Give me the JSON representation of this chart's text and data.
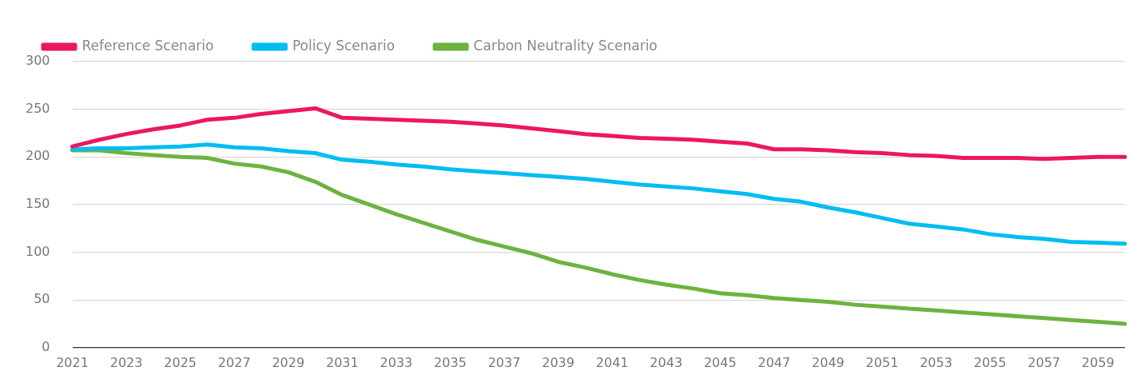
{
  "chart_data": {
    "type": "line",
    "categories": [
      "2021",
      null,
      "2023",
      null,
      "2025",
      null,
      "2027",
      null,
      "2029",
      null,
      "2031",
      null,
      "2033",
      null,
      "2035",
      null,
      "2037",
      null,
      "2039",
      null,
      "2041",
      null,
      "2043",
      null,
      "2045",
      null,
      "2047",
      null,
      "2049",
      null,
      "2051",
      null,
      "2053",
      null,
      "2055",
      null,
      "2057",
      null,
      "2059",
      null
    ],
    "series": [
      {
        "name": "Reference Scenario",
        "color": "#ec1763",
        "values": [
          211,
          218,
          224,
          229,
          233,
          239,
          241,
          245,
          248,
          251,
          241,
          240,
          239,
          238,
          237,
          235,
          233,
          230,
          227,
          224,
          222,
          220,
          219,
          218,
          216,
          214,
          208,
          208,
          207,
          205,
          204,
          202,
          201,
          199,
          199,
          199,
          198,
          199,
          200,
          200
        ]
      },
      {
        "name": "Policy Scenario",
        "color": "#00bdf2",
        "values": [
          208,
          209,
          209,
          210,
          211,
          213,
          210,
          209,
          206,
          204,
          197,
          195,
          192,
          190,
          187,
          185,
          183,
          181,
          179,
          177,
          174,
          171,
          169,
          167,
          164,
          161,
          156,
          153,
          147,
          142,
          136,
          130,
          127,
          124,
          119,
          116,
          114,
          111,
          110,
          109
        ]
      },
      {
        "name": "Carbon Neutrality Scenario",
        "color": "#6db33f",
        "values": [
          207,
          207,
          204,
          202,
          200,
          199,
          193,
          190,
          184,
          174,
          160,
          150,
          140,
          131,
          122,
          113,
          106,
          99,
          90,
          84,
          77,
          71,
          66,
          62,
          57,
          55,
          52,
          50,
          48,
          45,
          43,
          41,
          39,
          37,
          35,
          33,
          31,
          29,
          27,
          25
        ]
      }
    ],
    "ylim": [
      0,
      300
    ],
    "yticks": [
      0,
      50,
      100,
      150,
      200,
      250,
      300
    ],
    "grid": "y",
    "legend": "top left",
    "marker": "none",
    "line_style": "solid"
  }
}
